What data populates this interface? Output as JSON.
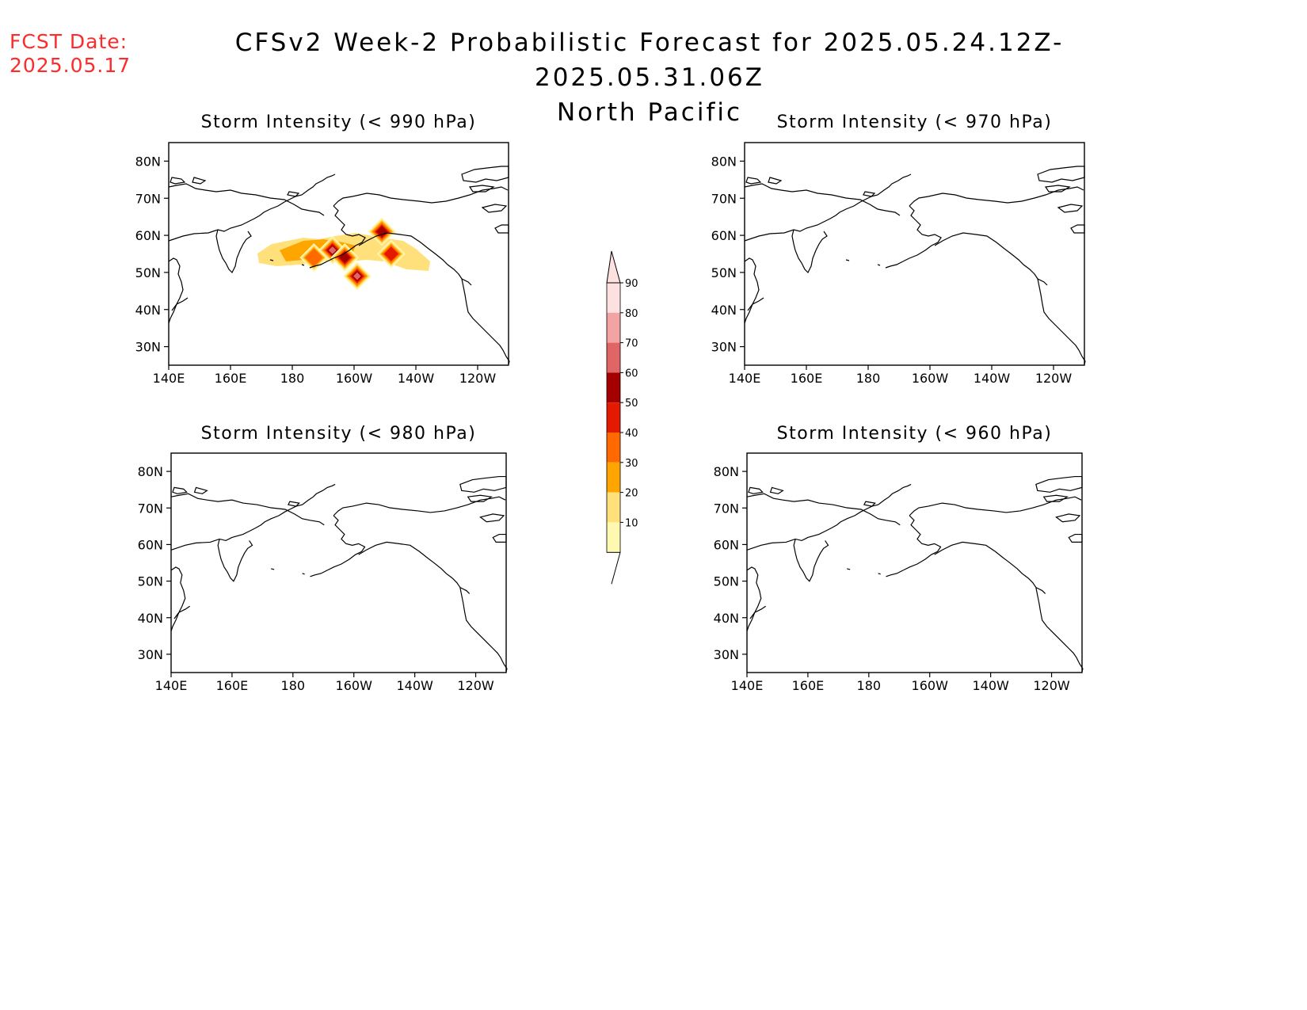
{
  "header": {
    "fcst_label": "FCST Date:",
    "fcst_date": "2025.05.17",
    "title_line1": "CFSv2 Week-2 Probabilistic Forecast for 2025.05.24.12Z-2025.05.31.06Z",
    "title_line2": "North Pacific"
  },
  "panels": [
    {
      "id": "p990",
      "title": "Storm Intensity (< 990 hPa)",
      "has_data": true
    },
    {
      "id": "p970",
      "title": "Storm Intensity (< 970 hPa)",
      "has_data": false
    },
    {
      "id": "p980",
      "title": "Storm Intensity (< 980 hPa)",
      "has_data": false
    },
    {
      "id": "p960",
      "title": "Storm Intensity (< 960 hPa)",
      "has_data": false
    }
  ],
  "axes": {
    "lat_ticks": [
      "80N",
      "70N",
      "60N",
      "50N",
      "40N",
      "30N"
    ],
    "lon_ticks": [
      "140E",
      "160E",
      "180",
      "160W",
      "140W",
      "120W"
    ]
  },
  "colorbar": {
    "levels": [
      "10",
      "20",
      "30",
      "40",
      "50",
      "60",
      "70",
      "80",
      "90"
    ],
    "colors": [
      "#fff8b0",
      "#ffe07a",
      "#ffa500",
      "#ff6a00",
      "#e31a00",
      "#a50000",
      "#e06666",
      "#f2a4a4",
      "#fde0e0"
    ]
  },
  "storm_patches": [
    {
      "lon": 187,
      "lat": 54,
      "prob": 40
    },
    {
      "lon": 193,
      "lat": 56,
      "prob": 70
    },
    {
      "lon": 197,
      "lat": 54,
      "prob": 60
    },
    {
      "lon": 201,
      "lat": 49,
      "prob": 70
    },
    {
      "lon": 209,
      "lat": 61,
      "prob": 60
    },
    {
      "lon": 212,
      "lat": 55,
      "prob": 50
    }
  ]
}
